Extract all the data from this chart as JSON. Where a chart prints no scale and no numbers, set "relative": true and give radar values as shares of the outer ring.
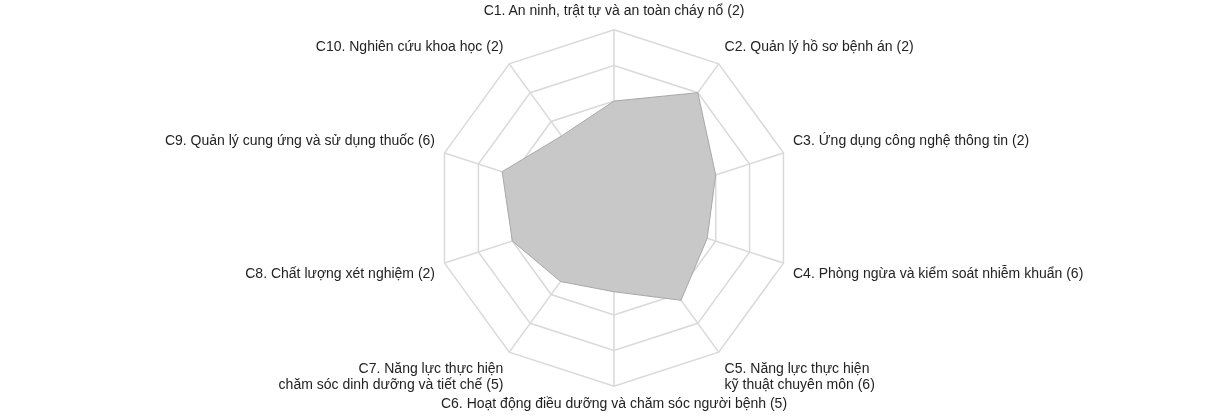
{
  "chart_data": {
    "type": "radar",
    "relative": true,
    "grid": true,
    "categories": [
      "C1. An ninh, trật tự và an toàn cháy nổ (2)",
      "C2. Quản lý hồ sơ bệnh án (2)",
      "C3. Ứng dụng công nghệ thông tin (2)",
      "C4. Phòng ngừa và kiểm soát nhiễm khuẩn (6)",
      "C5. Năng lực thực hiện\nkỹ thuật chuyên môn (6)",
      "C6. Hoạt động điều dưỡng và chăm sóc người bệnh (5)",
      "C7. Năng lực thực hiện\nchăm sóc dinh dưỡng và tiết chế (5)",
      "C8. Chất lượng xét nghiệm (2)",
      "C9. Quản lý cung ứng và sử dụng thuốc (6)",
      "C10. Nghiên cứu khoa học (2)"
    ],
    "series": [
      {
        "color": "#c8c8c8",
        "values": [
          0.6,
          0.8,
          0.6,
          0.55,
          0.64,
          0.47,
          0.51,
          0.6,
          0.66,
          0.5
        ]
      }
    ]
  }
}
